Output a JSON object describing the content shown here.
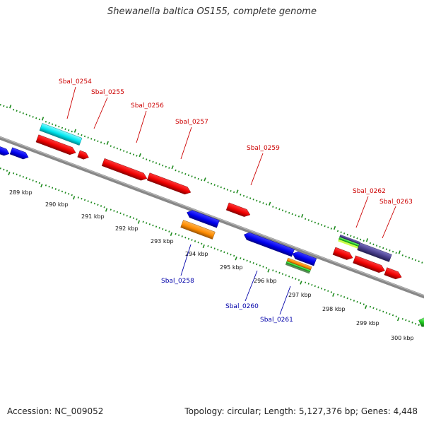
{
  "title": "Shewanella baltica OS155, complete genome",
  "footer": {
    "accession": "Accession: NC_009052",
    "stats": "Topology: circular; Length: 5,127,376 bp; Genes: 4,448"
  },
  "colors": {
    "axis": "#888888",
    "tick": "#1e8a1e",
    "red_label": "#cc0000",
    "blue_label": "#0000aa"
  },
  "kbp_labels": [
    "289 kbp",
    "290 kbp",
    "291 kbp",
    "292 kbp",
    "293 kbp",
    "294 kbp",
    "295 kbp",
    "296 kbp",
    "297 kbp",
    "298 kbp",
    "299 kbp",
    "300 kbp"
  ],
  "genes": [
    {
      "name": "Sbal_0254",
      "strand": "+",
      "color": "#00e5ee"
    },
    {
      "name": "Sbal_0255",
      "strand": "+",
      "color": "#ee0000"
    },
    {
      "name": "Sbal_0256",
      "strand": "+",
      "color": "#ee0000"
    },
    {
      "name": "Sbal_0257",
      "strand": "+",
      "color": "#ee0000"
    },
    {
      "name": "Sbal_0258",
      "strand": "-",
      "color": "#ff8c00"
    },
    {
      "name": "Sbal_0259",
      "strand": "+",
      "color": "#ee0000"
    },
    {
      "name": "Sbal_0260",
      "strand": "-",
      "color": "#0000ee"
    },
    {
      "name": "Sbal_0261",
      "strand": "-",
      "color": "#ff8c00"
    },
    {
      "name": "Sbal_0262",
      "strand": "+",
      "color": "#2e8b57"
    },
    {
      "name": "Sbal_0263",
      "strand": "+",
      "color": "#483d8b"
    }
  ]
}
